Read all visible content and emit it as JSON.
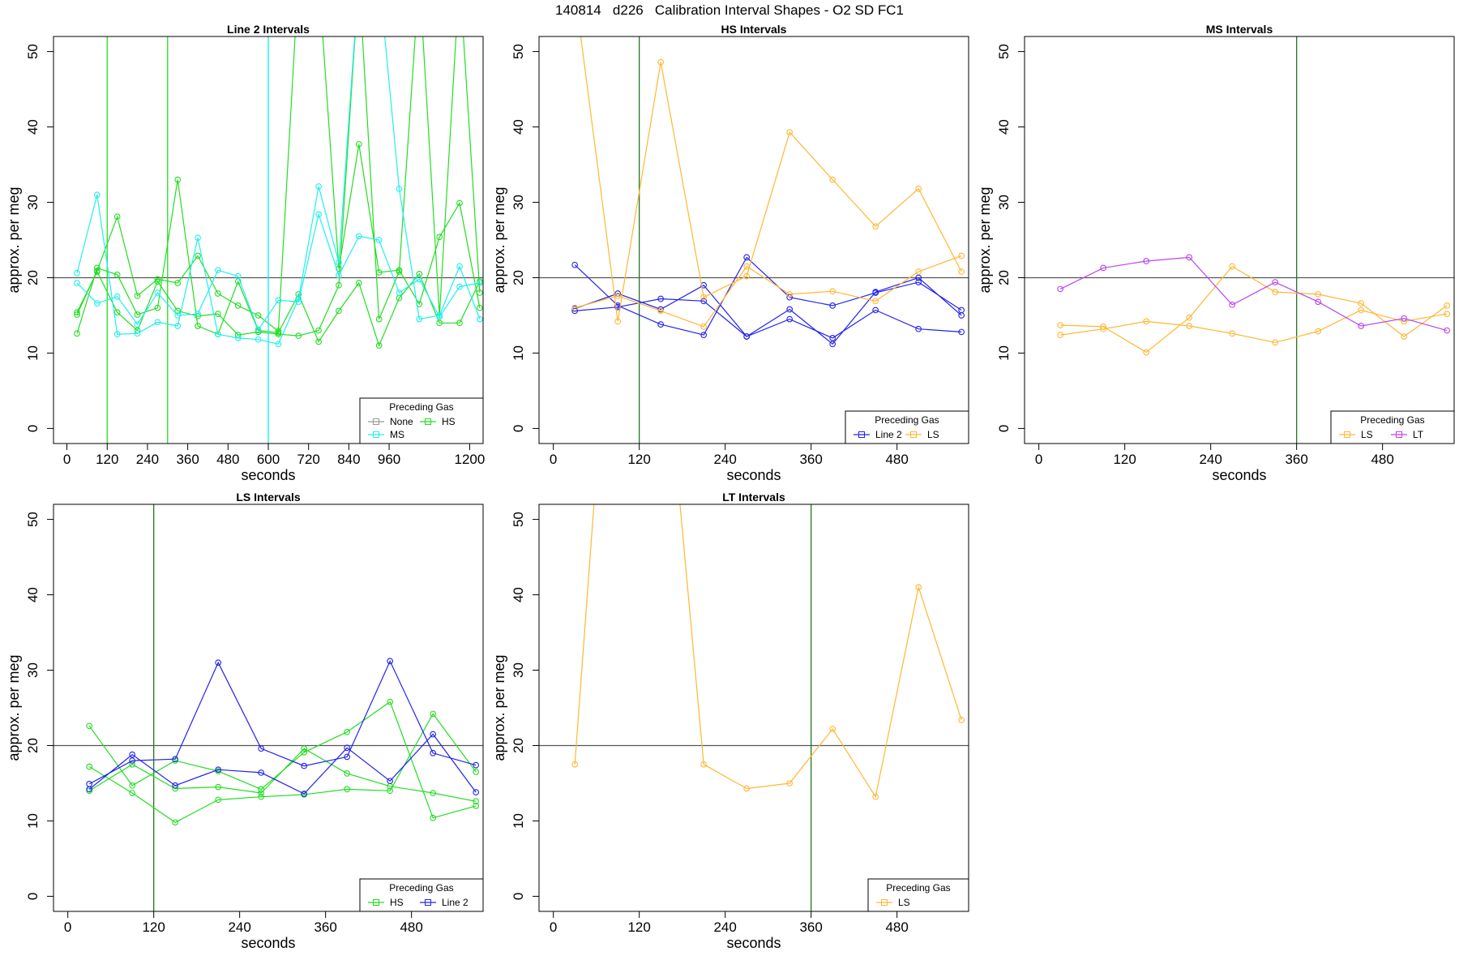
{
  "figure": {
    "title": "140814   d226   Calibration Interval Shapes - O2 SD FC1"
  },
  "colors": {
    "None": "#999999",
    "HS": "#22dd22",
    "MS": "#22eeee",
    "Line 2": "#2222ee",
    "LS": "#ffb733",
    "LT": "#bb44ee",
    "ref_line": "#555555",
    "green_vline": "#227722"
  },
  "chart_data": [
    {
      "type": "line",
      "title": "Line 2 Intervals",
      "xlabel": "seconds",
      "ylabel": "approx. per meg",
      "xlim": [
        -40,
        1240
      ],
      "ylim": [
        -2,
        52
      ],
      "xticks": [
        0,
        120,
        240,
        360,
        480,
        600,
        720,
        840,
        960,
        1200
      ],
      "yticks": [
        0,
        10,
        20,
        30,
        40,
        50
      ],
      "hline": 20,
      "vlines": [
        {
          "x": 120,
          "color": "HS"
        },
        {
          "x": 300,
          "color": "HS"
        },
        {
          "x": 600,
          "color": "MS"
        }
      ],
      "legend": {
        "title": "Preceding Gas",
        "entries": [
          "None",
          "HS",
          "MS"
        ],
        "position": "bottom-right"
      },
      "series": [
        {
          "name": "HS",
          "x": [
            30,
            90,
            150,
            210,
            270,
            330,
            390,
            450,
            510,
            570,
            630,
            690,
            750,
            810,
            870,
            930,
            990,
            1050,
            1110,
            1170,
            1230
          ],
          "values": [
            12.6,
            21.3,
            20.4,
            15.1,
            16.0,
            33.0,
            13.6,
            12.5,
            19.5,
            13.0,
            12.7,
            17.8,
            11.5,
            15.6,
            19.3,
            11.0,
            17.3,
            20.5,
            14.0,
            14.0,
            19.5
          ]
        },
        {
          "name": "HS",
          "x": [
            30,
            90,
            150,
            210,
            270,
            330,
            390,
            450,
            510,
            570,
            630,
            690,
            750,
            810,
            870,
            930,
            990,
            1050,
            1110,
            1170,
            1230
          ],
          "values": [
            15.1,
            20.9,
            28.1,
            17.6,
            19.8,
            19.3,
            22.9,
            17.9,
            16.3,
            15.0,
            12.9,
            60.0,
            60.0,
            21.2,
            37.7,
            20.7,
            21.0,
            16.5,
            25.4,
            29.9,
            16.0
          ]
        },
        {
          "name": "HS",
          "x": [
            30,
            90,
            150,
            210,
            270,
            330,
            390,
            450,
            510,
            570,
            630,
            690,
            750,
            810,
            870,
            930,
            990,
            1050,
            1110,
            1170,
            1230
          ],
          "values": [
            15.4,
            20.8,
            15.4,
            13.0,
            19.5,
            15.6,
            14.9,
            15.2,
            12.4,
            12.8,
            12.5,
            12.3,
            13.0,
            19.0,
            60.0,
            14.5,
            20.8,
            60.0,
            15.0,
            60.0,
            18.0
          ]
        },
        {
          "name": "MS",
          "x": [
            30,
            90,
            150,
            210,
            270,
            330,
            390,
            450,
            510,
            570,
            630,
            690,
            750,
            810,
            870,
            930,
            990,
            1050,
            1110,
            1170,
            1230
          ],
          "values": [
            20.6,
            31.0,
            12.5,
            12.6,
            14.1,
            13.6,
            25.3,
            12.5,
            12.0,
            11.8,
            11.2,
            17.2,
            32.1,
            22.0,
            60.0,
            60.0,
            31.8,
            14.5,
            15.0,
            21.5,
            14.5
          ]
        },
        {
          "name": "MS",
          "x": [
            30,
            90,
            150,
            210,
            270,
            330,
            390,
            450,
            510,
            570,
            630,
            690,
            750,
            810,
            870,
            930,
            990,
            1050,
            1110,
            1170,
            1230
          ],
          "values": [
            19.3,
            16.6,
            17.5,
            13.8,
            18.0,
            15.0,
            15.2,
            21.0,
            20.2,
            13.1,
            17.0,
            16.8,
            28.4,
            20.3,
            25.5,
            25.0,
            18.0,
            19.8,
            14.8,
            18.8,
            19.3
          ]
        },
        {
          "name": "MS",
          "x": [
            600,
            600
          ],
          "values": [
            -2,
            52
          ]
        }
      ]
    },
    {
      "type": "line",
      "title": "HS Intervals",
      "xlabel": "seconds",
      "ylabel": "approx. per meg",
      "xlim": [
        -20,
        580
      ],
      "ylim": [
        -2,
        52
      ],
      "xticks": [
        0,
        120,
        240,
        360,
        480
      ],
      "yticks": [
        0,
        10,
        20,
        30,
        40,
        50
      ],
      "hline": 20,
      "vlines": [
        {
          "x": 120,
          "color": "green_vline"
        }
      ],
      "legend": {
        "title": "Preceding Gas",
        "entries": [
          "Line 2",
          "LS"
        ],
        "position": "bottom-right"
      },
      "series": [
        {
          "name": "Line 2",
          "x": [
            30,
            90,
            150,
            210,
            270,
            330,
            390,
            450,
            510,
            570
          ],
          "values": [
            21.7,
            16.3,
            13.8,
            12.4,
            22.7,
            17.4,
            16.3,
            18.0,
            19.4,
            15.7
          ]
        },
        {
          "name": "Line 2",
          "x": [
            30,
            90,
            150,
            210,
            270,
            330,
            390,
            450,
            510,
            570
          ],
          "values": [
            15.6,
            16.1,
            17.2,
            16.9,
            12.2,
            15.8,
            11.2,
            18.1,
            20.0,
            15.0
          ]
        },
        {
          "name": "Line 2",
          "x": [
            30,
            90,
            150,
            210,
            270,
            330,
            390,
            450,
            510,
            570
          ],
          "values": [
            15.9,
            17.9,
            15.8,
            19.0,
            12.2,
            14.5,
            12.0,
            15.7,
            13.2,
            12.8
          ]
        },
        {
          "name": "LS",
          "x": [
            30,
            90,
            150,
            210,
            270,
            330,
            390,
            450,
            510,
            570
          ],
          "values": [
            58.0,
            14.2,
            48.6,
            17.4,
            20.2,
            39.3,
            33.0,
            26.8,
            31.8,
            20.8
          ]
        },
        {
          "name": "LS",
          "x": [
            30,
            90,
            150,
            210,
            270,
            330,
            390,
            450,
            510,
            570
          ],
          "values": [
            16.0,
            17.6,
            15.6,
            13.5,
            21.5,
            17.8,
            18.2,
            16.9,
            20.8,
            22.9
          ]
        }
      ]
    },
    {
      "type": "line",
      "title": "MS Intervals",
      "xlabel": "seconds",
      "ylabel": "approx. per meg",
      "xlim": [
        -20,
        580
      ],
      "ylim": [
        -2,
        52
      ],
      "xticks": [
        0,
        120,
        240,
        360,
        480
      ],
      "yticks": [
        0,
        10,
        20,
        30,
        40,
        50
      ],
      "hline": 20,
      "vlines": [
        {
          "x": 360,
          "color": "green_vline"
        }
      ],
      "legend": {
        "title": "Preceding Gas",
        "entries": [
          "LS",
          "LT"
        ],
        "position": "bottom-right"
      },
      "series": [
        {
          "name": "LS",
          "x": [
            30,
            90,
            150,
            210,
            270,
            330,
            390,
            450,
            510,
            570
          ],
          "values": [
            13.7,
            13.5,
            10.1,
            14.7,
            21.5,
            18.1,
            17.8,
            16.6,
            12.2,
            16.3
          ]
        },
        {
          "name": "LS",
          "x": [
            30,
            90,
            150,
            210,
            270,
            330,
            390,
            450,
            510,
            570
          ],
          "values": [
            12.4,
            13.2,
            14.2,
            13.6,
            12.6,
            11.4,
            12.9,
            15.7,
            14.2,
            15.2
          ]
        },
        {
          "name": "LT",
          "x": [
            30,
            90,
            150,
            210,
            270,
            330,
            390,
            450,
            510,
            570
          ],
          "values": [
            18.5,
            21.3,
            22.2,
            22.7,
            16.4,
            19.4,
            16.8,
            13.6,
            14.6,
            13.0
          ]
        }
      ]
    },
    {
      "type": "line",
      "title": "LS Intervals",
      "xlabel": "seconds",
      "ylabel": "approx. per meg",
      "xlim": [
        -20,
        580
      ],
      "ylim": [
        -2,
        52
      ],
      "xticks": [
        0,
        120,
        240,
        360,
        480
      ],
      "yticks": [
        0,
        10,
        20,
        30,
        40,
        50
      ],
      "hline": 20,
      "vlines": [
        {
          "x": 120,
          "color": "green_vline"
        }
      ],
      "legend": {
        "title": "Preceding Gas",
        "entries": [
          "HS",
          "Line 2"
        ],
        "position": "bottom-right"
      },
      "series": [
        {
          "name": "HS",
          "x": [
            30,
            90,
            150,
            210,
            270,
            330,
            390,
            450,
            510,
            570
          ],
          "values": [
            22.6,
            14.7,
            18.0,
            16.6,
            14.2,
            19.1,
            21.8,
            25.8,
            10.4,
            12.0
          ]
        },
        {
          "name": "HS",
          "x": [
            30,
            90,
            150,
            210,
            270,
            330,
            390,
            450,
            510,
            570
          ],
          "values": [
            17.2,
            13.7,
            9.8,
            12.8,
            13.2,
            13.5,
            14.2,
            14.0,
            24.2,
            16.5
          ]
        },
        {
          "name": "HS",
          "x": [
            30,
            90,
            150,
            210,
            270,
            330,
            390,
            450,
            510,
            570
          ],
          "values": [
            14.0,
            17.5,
            14.3,
            14.5,
            13.7,
            19.6,
            16.3,
            14.6,
            13.7,
            12.6
          ]
        },
        {
          "name": "Line 2",
          "x": [
            30,
            90,
            150,
            210,
            270,
            330,
            390,
            450,
            510,
            570
          ],
          "values": [
            14.9,
            18.0,
            18.2,
            31.0,
            19.6,
            17.3,
            18.5,
            31.2,
            19.0,
            17.4
          ]
        },
        {
          "name": "Line 2",
          "x": [
            30,
            90,
            150,
            210,
            270,
            330,
            390,
            450,
            510,
            570
          ],
          "values": [
            14.2,
            18.8,
            14.7,
            16.8,
            16.4,
            13.6,
            19.7,
            15.3,
            21.5,
            13.8
          ]
        }
      ]
    },
    {
      "type": "line",
      "title": "LT Intervals",
      "xlabel": "seconds",
      "ylabel": "approx. per meg",
      "xlim": [
        -20,
        580
      ],
      "ylim": [
        -2,
        52
      ],
      "xticks": [
        0,
        120,
        240,
        360,
        480
      ],
      "yticks": [
        0,
        10,
        20,
        30,
        40,
        50
      ],
      "hline": 20,
      "vlines": [
        {
          "x": 360,
          "color": "green_vline"
        }
      ],
      "legend": {
        "title": "Preceding Gas",
        "entries": [
          "LS"
        ],
        "position": "bottom-right"
      },
      "series": [
        {
          "name": "LS",
          "x": [
            30,
            90,
            150,
            210,
            270,
            330,
            390,
            450,
            510,
            570
          ],
          "values": [
            17.5,
            95.0,
            80.0,
            17.5,
            14.3,
            15.0,
            22.2,
            13.2,
            41.0,
            23.4
          ]
        }
      ]
    }
  ]
}
